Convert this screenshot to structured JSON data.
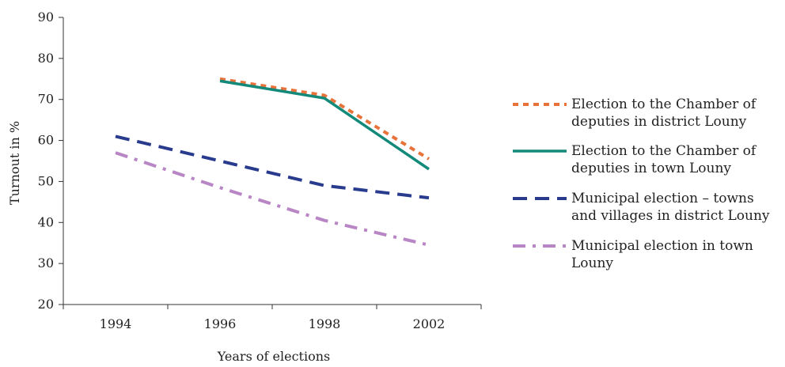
{
  "chart_data": {
    "type": "line",
    "title": "",
    "xlabel": "Years of elections",
    "ylabel": "Turnout in %",
    "categories": [
      "1994",
      "1996",
      "1998",
      "2002"
    ],
    "ylim": [
      20,
      90
    ],
    "yticks": [
      20,
      30,
      40,
      50,
      60,
      70,
      80,
      90
    ],
    "grid": false,
    "legend_position": "right",
    "series": [
      {
        "name": "Election to the Chamber of deputies in district Louny",
        "legend_lines": [
          "Election to the Chamber of",
          "deputies in district Louny"
        ],
        "values": [
          null,
          75,
          71,
          55.5
        ],
        "color": "#e8733a",
        "line_style": "dotted"
      },
      {
        "name": "Election to the Chamber of deputies in town Louny",
        "legend_lines": [
          "Election to the Chamber of",
          "deputies in town Louny"
        ],
        "values": [
          null,
          74.5,
          70.3,
          53
        ],
        "color": "#13897a",
        "line_style": "solid"
      },
      {
        "name": "Municipal election – towns and villages in district Louny",
        "legend_lines": [
          "Municipal election – towns",
          "and villages in district Louny"
        ],
        "values": [
          61,
          55,
          49,
          46
        ],
        "color": "#283b8c",
        "line_style": "dashed"
      },
      {
        "name": "Municipal election in town Louny",
        "legend_lines": [
          "Municipal election in town",
          "Louny"
        ],
        "values": [
          57,
          48.5,
          40.5,
          34.5
        ],
        "color": "#b886c4",
        "line_style": "dash-dot"
      }
    ]
  }
}
